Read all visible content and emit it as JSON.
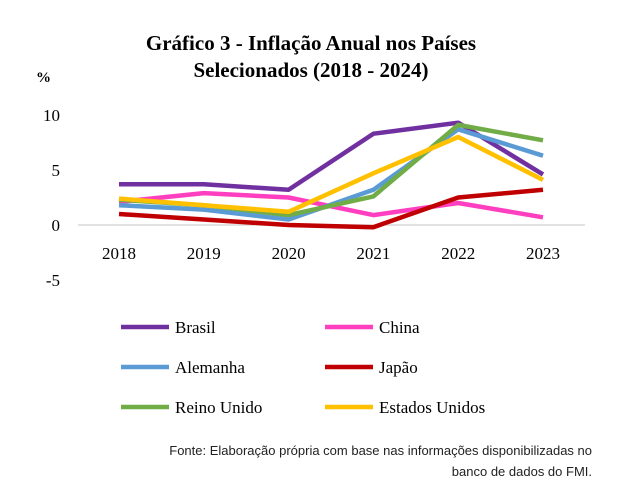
{
  "chart_data": {
    "type": "line",
    "title": "Gráfico 3 - Inflação Anual nos Países Selecionados (2018 - 2024)",
    "title_lines": [
      "Gráfico 3 - Inflação Anual nos Países",
      "Selecionados (2018 - 2024)"
    ],
    "ylabel": "%",
    "xlabel": "",
    "x": [
      "2018",
      "2019",
      "2020",
      "2021",
      "2022",
      "2023"
    ],
    "yticks": [
      10,
      5,
      0,
      -5
    ],
    "ylim": [
      -5,
      10
    ],
    "grid": false,
    "legend": "bottom",
    "series": [
      {
        "name": "Brasil",
        "color": "#7030a0",
        "values": [
          3.7,
          3.7,
          3.2,
          8.3,
          9.3,
          4.6
        ]
      },
      {
        "name": "China",
        "color": "#ff3fbf",
        "values": [
          2.1,
          2.9,
          2.5,
          0.9,
          2.0,
          0.7
        ]
      },
      {
        "name": "Alemanha",
        "color": "#5b9bd5",
        "values": [
          1.8,
          1.4,
          0.5,
          3.2,
          8.7,
          6.3
        ]
      },
      {
        "name": "Japão",
        "color": "#c00000",
        "values": [
          1.0,
          0.5,
          0.0,
          -0.2,
          2.5,
          3.2
        ]
      },
      {
        "name": "Reino Unido",
        "color": "#70ad47",
        "values": [
          2.3,
          1.8,
          0.9,
          2.6,
          9.1,
          7.7
        ]
      },
      {
        "name": "Estados Unidos",
        "color": "#ffc000",
        "values": [
          2.4,
          1.8,
          1.2,
          4.7,
          8.0,
          4.1
        ]
      }
    ]
  },
  "source": [
    "Fonte: Elaboração própria com base nas informações disponibilizadas no",
    "banco de dados do FMI."
  ]
}
